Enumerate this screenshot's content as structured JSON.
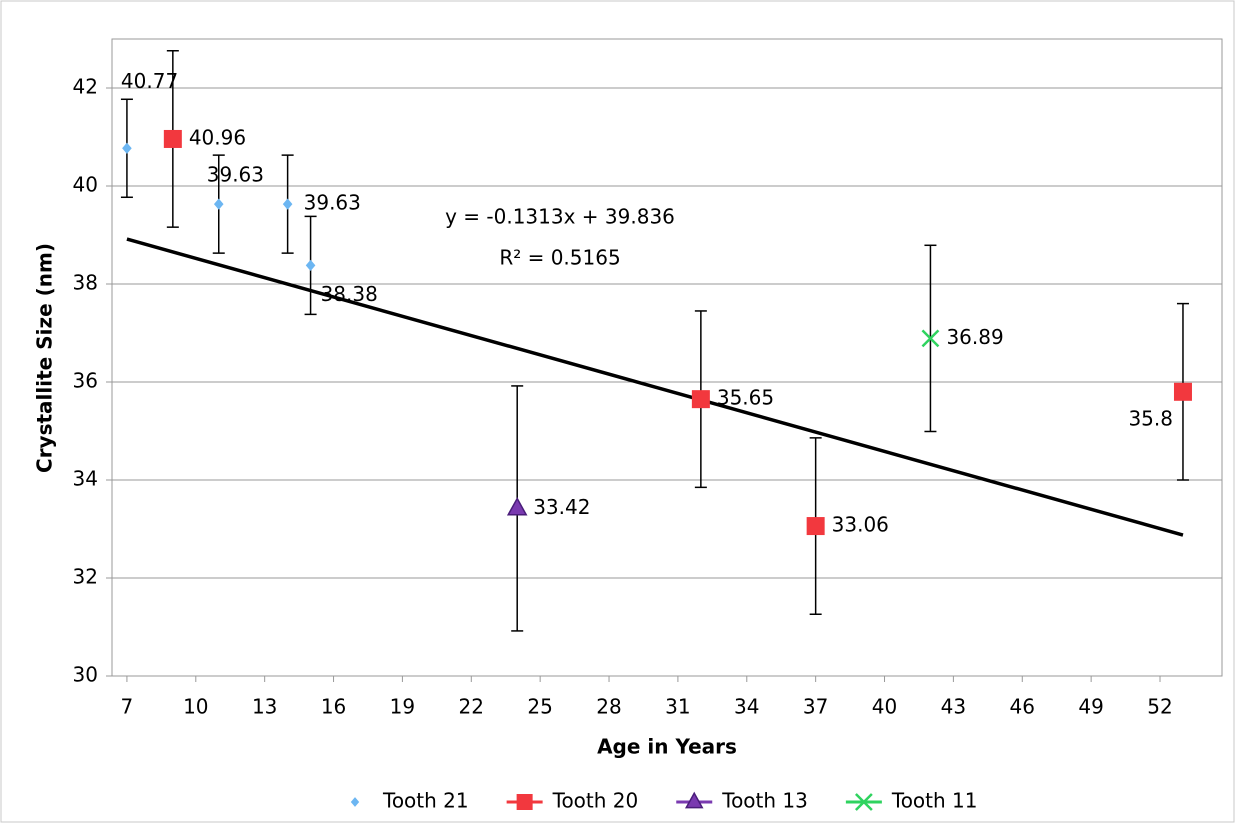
{
  "chart_data": {
    "type": "scatter",
    "xlabel": "Age in Years",
    "ylabel": "Crystallite Size (nm)",
    "xlim": [
      6.35,
      54.7
    ],
    "ylim": [
      30,
      43
    ],
    "xticks": [
      7,
      10,
      13,
      16,
      19,
      22,
      25,
      28,
      31,
      34,
      37,
      40,
      43,
      46,
      49,
      52
    ],
    "yticks": [
      30,
      32,
      34,
      36,
      38,
      40,
      42
    ],
    "grid": true,
    "legend": "bottom",
    "series": [
      {
        "name": "Tooth 21",
        "color": "#6cb6f2",
        "marker": "diamond",
        "x": [
          7,
          11,
          14,
          15
        ],
        "values": [
          40.77,
          39.63,
          39.63,
          38.38
        ],
        "errors": [
          1,
          1,
          1,
          1
        ]
      },
      {
        "name": "Tooth 20",
        "color": "#f2383e",
        "marker": "square",
        "x": [
          9,
          32,
          37,
          53
        ],
        "values": [
          40.96,
          35.65,
          33.06,
          35.8
        ],
        "errors": [
          1.8,
          1.8,
          1.8,
          1.8
        ]
      },
      {
        "name": "Tooth 13",
        "color": "#7a3ab0",
        "marker": "triangle",
        "x": [
          24
        ],
        "values": [
          33.42
        ],
        "errors": [
          2.5
        ]
      },
      {
        "name": "Tooth 11",
        "color": "#2fd35f",
        "marker": "x",
        "x": [
          42
        ],
        "values": [
          36.89
        ],
        "errors": [
          1.9
        ]
      }
    ],
    "trendline": {
      "slope": -0.1313,
      "intercept": 39.836,
      "equation": "y = -0.1313x + 39.836",
      "r2": "R² = 0.5165"
    }
  }
}
